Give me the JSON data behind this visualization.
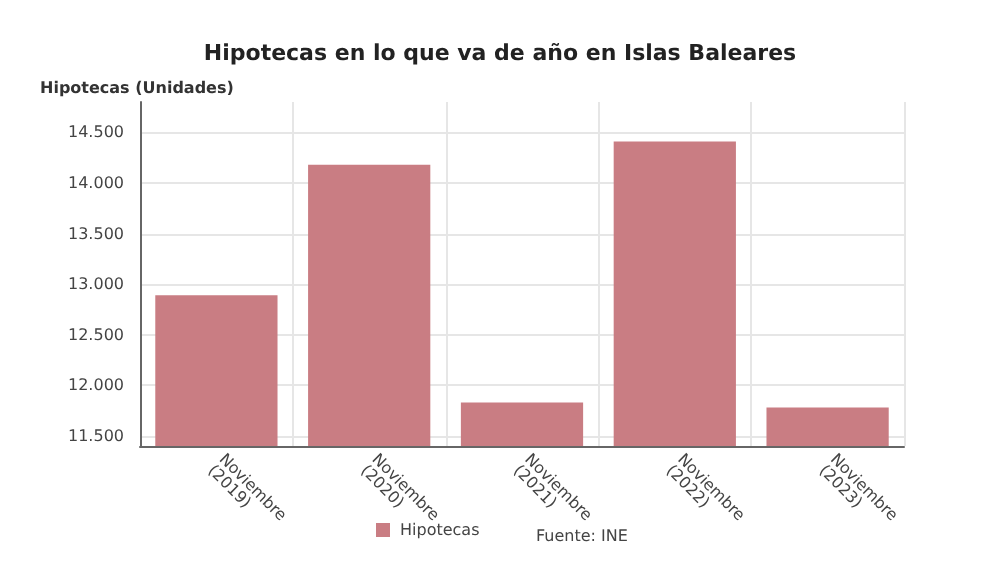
{
  "chart_data": {
    "type": "bar",
    "title": "Hipotecas en lo que va de año en Islas Baleares",
    "ylabel": "Hipotecas (Unidades)",
    "categories": [
      "Noviembre (2019)",
      "Noviembre (2020)",
      "Noviembre (2021)",
      "Noviembre (2022)",
      "Noviembre (2023)"
    ],
    "series": [
      {
        "name": "Hipotecas",
        "color": "#c97d83",
        "values": [
          12890,
          14180,
          11830,
          14410,
          11780
        ]
      }
    ],
    "ylim": [
      11400,
      14800
    ],
    "yticks": [
      {
        "value": 11500,
        "label": "11.500"
      },
      {
        "value": 12000,
        "label": "12.000"
      },
      {
        "value": 12500,
        "label": "12.500"
      },
      {
        "value": 13000,
        "label": "13.000"
      },
      {
        "value": 13500,
        "label": "13.500"
      },
      {
        "value": 14000,
        "label": "14.000"
      },
      {
        "value": 14500,
        "label": "14.500"
      }
    ],
    "grid": true,
    "legend": "bottom",
    "annotations": [
      "Fuente: INE"
    ]
  }
}
